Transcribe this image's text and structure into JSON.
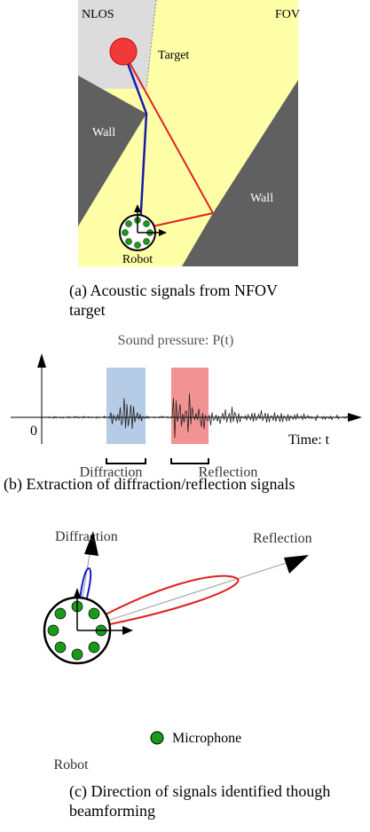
{
  "panel_a": {
    "labels": {
      "nlos": "NLOS",
      "fov": "FOV",
      "target": "Target",
      "wall_left": "Wall",
      "wall_right": "Wall",
      "robot": "Robot"
    },
    "caption": "(a) Acoustic signals from NFOV target"
  },
  "panel_b": {
    "title": "Sound pressure: P(t)",
    "zero": "0",
    "x_label": "Time: t",
    "diffraction": "Diffraction",
    "reflection": "Reflection",
    "caption": "(b) Extraction of diffraction/reflection signals"
  },
  "panel_c": {
    "diffraction": "Diffraction",
    "reflection": "Reflection",
    "robot": "Robot",
    "legend": "Microphone",
    "caption": "(c) Direction of signals identified though beamforming"
  }
}
